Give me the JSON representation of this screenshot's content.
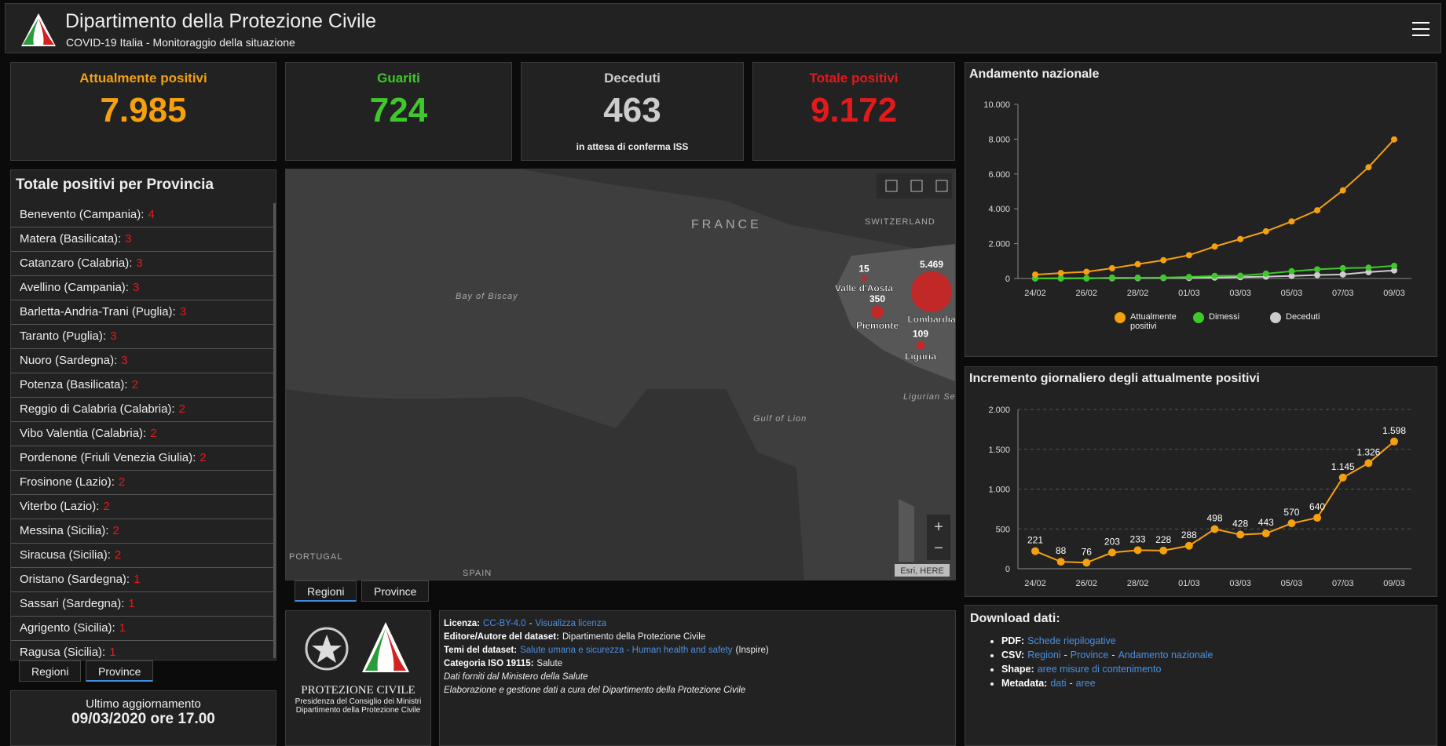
{
  "header": {
    "title": "Dipartimento della Protezione Civile",
    "subtitle": "COVID-19 Italia - Monitoraggio della situazione"
  },
  "kpis": [
    {
      "label": "Attualmente positivi",
      "value": "7.985",
      "color": "#f5a00f"
    },
    {
      "label": "Guariti",
      "value": "724",
      "color": "#3ec92a"
    },
    {
      "label": "Deceduti",
      "value": "463",
      "color": "#cccccc",
      "note": "in attesa di conferma ISS"
    },
    {
      "label": "Totale positivi",
      "value": "9.172",
      "color": "#e31a1c"
    }
  ],
  "provinces": {
    "title": "Totale positivi per Provincia",
    "items": [
      {
        "name": "Benevento (Campania):",
        "value": 4
      },
      {
        "name": "Matera (Basilicata):",
        "value": 3
      },
      {
        "name": "Catanzaro (Calabria):",
        "value": 3
      },
      {
        "name": "Avellino (Campania):",
        "value": 3
      },
      {
        "name": "Barletta-Andria-Trani (Puglia):",
        "value": 3
      },
      {
        "name": "Taranto (Puglia):",
        "value": 3
      },
      {
        "name": "Nuoro (Sardegna):",
        "value": 3
      },
      {
        "name": "Potenza (Basilicata):",
        "value": 2
      },
      {
        "name": "Reggio di Calabria (Calabria):",
        "value": 2
      },
      {
        "name": "Vibo Valentia (Calabria):",
        "value": 2
      },
      {
        "name": "Pordenone (Friuli Venezia Giulia):",
        "value": 2
      },
      {
        "name": "Frosinone (Lazio):",
        "value": 2
      },
      {
        "name": "Viterbo (Lazio):",
        "value": 2
      },
      {
        "name": "Messina (Sicilia):",
        "value": 2
      },
      {
        "name": "Siracusa (Sicilia):",
        "value": 2
      },
      {
        "name": "Oristano (Sardegna):",
        "value": 1
      },
      {
        "name": "Sassari (Sardegna):",
        "value": 1
      },
      {
        "name": "Agrigento (Sicilia):",
        "value": 1
      },
      {
        "name": "Ragusa (Sicilia):",
        "value": 1
      }
    ]
  },
  "list_tabs": [
    "Regioni",
    "Province"
  ],
  "list_tab_active": 1,
  "last_update": {
    "label": "Ultimo aggiornamento",
    "value": "09/03/2020 ore 17.00"
  },
  "map": {
    "places": [
      "FRANCE",
      "SWITZERLAND",
      "Bay of Biscay",
      "Gulf of Lion",
      "Ligurian Sea",
      "PORTUGAL",
      "SPAIN"
    ],
    "regions": [
      {
        "name": "Valle d'Aosta",
        "value": 15,
        "label": "15"
      },
      {
        "name": "Piemonte",
        "value": 350,
        "label": "350"
      },
      {
        "name": "Lombardia",
        "value": 5469,
        "label": "5.469"
      },
      {
        "name": "Liguria",
        "value": 109,
        "label": "109"
      }
    ],
    "zoom": [
      "+",
      "−"
    ],
    "attribution": "Esri, HERE",
    "color": "#d42020"
  },
  "map_tabs": [
    "Regioni",
    "Province"
  ],
  "map_tab_active": 0,
  "logo": {
    "name": "PROTEZIONE CIVILE",
    "lines": [
      "Presidenza del Consiglio dei Ministri",
      "Dipartimento della Protezione Civile"
    ]
  },
  "info": {
    "lines": [
      [
        {
          "k": "label",
          "t": "Licenza:"
        },
        {
          "k": "link",
          "t": "CC-BY-4.0"
        },
        {
          "k": "text",
          "t": "-"
        },
        {
          "k": "link",
          "t": "Visualizza licenza"
        }
      ],
      [
        {
          "k": "label",
          "t": "Editore/Autore del dataset:"
        },
        {
          "k": "text",
          "t": "Dipartimento della Protezione Civile"
        }
      ],
      [
        {
          "k": "label",
          "t": "Temi del dataset:"
        },
        {
          "k": "link",
          "t": "Salute umana e sicurezza - Human health and safety"
        },
        {
          "k": "text",
          "t": "(Inspire)"
        }
      ],
      [
        {
          "k": "label",
          "t": "Categoria ISO 19115:"
        },
        {
          "k": "text",
          "t": "Salute"
        }
      ],
      [
        {
          "k": "italic",
          "t": "Dati forniti dal Ministero della Salute"
        }
      ],
      [
        {
          "k": "italic",
          "t": "Elaborazione e gestione dati a cura del Dipartimento della Protezione Civile"
        }
      ]
    ]
  },
  "downloads": {
    "title": "Download dati:",
    "items": [
      [
        {
          "k": "label",
          "t": "PDF:"
        },
        {
          "k": "link",
          "t": "Schede riepilogative"
        }
      ],
      [
        {
          "k": "label",
          "t": "CSV:"
        },
        {
          "k": "link",
          "t": "Regioni"
        },
        {
          "k": "text",
          "t": "-"
        },
        {
          "k": "link",
          "t": "Province"
        },
        {
          "k": "text",
          "t": "-"
        },
        {
          "k": "link",
          "t": "Andamento nazionale"
        }
      ],
      [
        {
          "k": "label",
          "t": "Shape:"
        },
        {
          "k": "link",
          "t": "aree misure di contenimento"
        }
      ],
      [
        {
          "k": "label",
          "t": "Metadata:"
        },
        {
          "k": "link",
          "t": "dati"
        },
        {
          "k": "text",
          "t": "-"
        },
        {
          "k": "link",
          "t": "aree"
        }
      ]
    ]
  },
  "chart_data": [
    {
      "type": "line",
      "title": "Andamento nazionale",
      "categories": [
        "24/02",
        null,
        "26/02",
        null,
        "28/02",
        null,
        "01/03",
        null,
        "03/03",
        null,
        "05/03",
        null,
        "07/03",
        null,
        "09/03"
      ],
      "series": [
        {
          "name": "Attualmente positivi",
          "color": "#f5a00f",
          "values": [
            221,
            309,
            385,
            588,
            821,
            1049,
            1337,
            1835,
            2263,
            2706,
            3276,
            3916,
            5061,
            6387,
            7985
          ]
        },
        {
          "name": "Dimessi",
          "color": "#3ec92a",
          "values": [
            1,
            1,
            3,
            45,
            46,
            50,
            83,
            149,
            160,
            276,
            414,
            523,
            589,
            622,
            724
          ]
        },
        {
          "name": "Deceduti",
          "color": "#cccccc",
          "values": [
            7,
            10,
            12,
            17,
            21,
            29,
            34,
            52,
            79,
            107,
            148,
            197,
            233,
            366,
            463
          ]
        }
      ],
      "ylim": [
        0,
        10000
      ],
      "yticks": [
        0,
        {
          "value": 2000,
          "label": "2.000"
        },
        {
          "value": 4000,
          "label": "4.000"
        },
        {
          "value": 6000,
          "label": "6.000"
        },
        {
          "value": 8000,
          "label": "8.000"
        },
        {
          "value": 10000,
          "label": "10.000"
        }
      ],
      "grid": false,
      "legend": "bottom"
    },
    {
      "type": "line",
      "title": "Incremento giornaliero degli attualmente positivi",
      "categories": [
        "24/02",
        null,
        "26/02",
        null,
        "28/02",
        null,
        "01/03",
        null,
        "03/03",
        null,
        "05/03",
        null,
        "07/03",
        null,
        "09/03"
      ],
      "series": [
        {
          "name": "Attualmente positivi",
          "color": "#f5a00f",
          "values": [
            221,
            88,
            76,
            203,
            233,
            228,
            288,
            498,
            428,
            443,
            570,
            640,
            1145,
            1326,
            1598
          ],
          "value_labels": [
            "221",
            "88",
            "76",
            "203",
            "233",
            "228",
            "288",
            "498",
            "428",
            "443",
            "570",
            "640",
            "1.145",
            "1.326",
            "1.598"
          ]
        }
      ],
      "ylim": [
        0,
        2000
      ],
      "yticks": [
        0,
        500,
        {
          "value": 1000,
          "label": "1.000"
        },
        {
          "value": 1500,
          "label": "1.500"
        },
        {
          "value": 2000,
          "label": "2.000"
        }
      ],
      "grid": true
    }
  ]
}
